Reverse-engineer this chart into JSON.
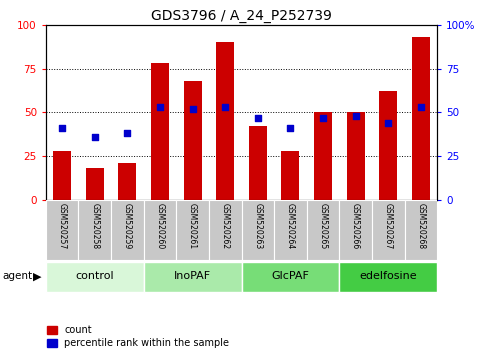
{
  "title": "GDS3796 / A_24_P252739",
  "samples": [
    "GSM520257",
    "GSM520258",
    "GSM520259",
    "GSM520260",
    "GSM520261",
    "GSM520262",
    "GSM520263",
    "GSM520264",
    "GSM520265",
    "GSM520266",
    "GSM520267",
    "GSM520268"
  ],
  "counts": [
    28,
    18,
    21,
    78,
    68,
    90,
    42,
    28,
    50,
    50,
    62,
    93
  ],
  "percentile_ranks": [
    41,
    36,
    38,
    53,
    52,
    53,
    47,
    41,
    47,
    48,
    44,
    53
  ],
  "groups": [
    {
      "label": "control",
      "start": 0,
      "end": 3,
      "color": "#d9f7d9"
    },
    {
      "label": "InoPAF",
      "start": 3,
      "end": 6,
      "color": "#aaeaaa"
    },
    {
      "label": "GlcPAF",
      "start": 6,
      "end": 9,
      "color": "#77dd77"
    },
    {
      "label": "edelfosine",
      "start": 9,
      "end": 12,
      "color": "#44cc44"
    }
  ],
  "bar_color": "#cc0000",
  "dot_color": "#0000cc",
  "ylim": [
    0,
    100
  ],
  "yticks": [
    0,
    25,
    50,
    75,
    100
  ],
  "agent_label": "agent"
}
